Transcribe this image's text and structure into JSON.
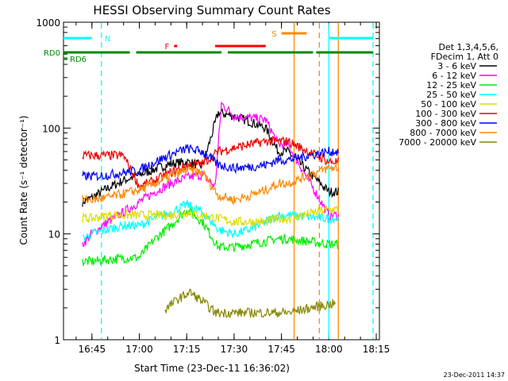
{
  "chart_data": {
    "type": "line",
    "title": "HESSI Observing Summary Count Rates",
    "xlabel": "Start Time (23-Dec-11 16:36:02)",
    "ylabel": "Count Rate (s⁻¹ detector⁻¹)",
    "y_scale": "log",
    "ylim": [
      1,
      1000
    ],
    "xlim_minutes_after_16_36": [
      0,
      100
    ],
    "x_ticks": [
      "16:45",
      "17:00",
      "17:15",
      "17:30",
      "17:45",
      "18:00",
      "18:15"
    ],
    "y_ticks": [
      "1",
      "10",
      "100",
      "1000"
    ],
    "timestamp": "23-Dec-2011 14:37",
    "legend": {
      "placement": "right",
      "header": [
        "Det 1,3,4,5,6,",
        "FDecim 1, Att 0"
      ]
    },
    "series": [
      {
        "name": "3 - 6 keV",
        "color": "#000000",
        "x": [
          "16:42",
          "16:45",
          "16:50",
          "16:55",
          "17:00",
          "17:05",
          "17:10",
          "17:15",
          "17:20",
          "17:25",
          "17:30",
          "17:35",
          "17:40",
          "17:44",
          "17:47",
          "18:00",
          "18:03"
        ],
        "values": [
          20,
          22,
          27,
          32,
          36,
          41,
          46,
          48,
          44,
          140,
          130,
          115,
          100,
          60,
          60,
          25,
          25
        ]
      },
      {
        "name": "6 - 12 keV",
        "color": "#ff00ff",
        "x": [
          "16:42",
          "16:45",
          "16:50",
          "16:55",
          "17:00",
          "17:05",
          "17:10",
          "17:15",
          "17:20",
          "17:24",
          "17:26",
          "17:30",
          "17:35",
          "17:40",
          "17:44",
          "17:47",
          "18:00",
          "18:03"
        ],
        "values": [
          8,
          10,
          13,
          16,
          20,
          25,
          30,
          34,
          36,
          28,
          170,
          130,
          125,
          120,
          70,
          70,
          15,
          15
        ]
      },
      {
        "name": "12 - 25 keV",
        "color": "#00ee00",
        "x": [
          "16:42",
          "16:45",
          "16:50",
          "16:55",
          "17:00",
          "17:05",
          "17:10",
          "17:15",
          "17:20",
          "17:25",
          "17:30",
          "17:35",
          "17:40",
          "17:44",
          "17:47",
          "18:00",
          "18:03"
        ],
        "values": [
          5.5,
          5.5,
          5.7,
          5.9,
          6,
          9,
          12,
          17,
          13,
          7.5,
          7.5,
          8,
          8.5,
          9,
          9,
          8,
          8
        ]
      },
      {
        "name": "25 - 50 keV",
        "color": "#00ffff",
        "x": [
          "16:42",
          "16:45",
          "16:50",
          "16:55",
          "17:00",
          "17:05",
          "17:10",
          "17:15",
          "17:20",
          "17:25",
          "17:30",
          "17:35",
          "17:40",
          "17:44",
          "17:47",
          "18:00",
          "18:03"
        ],
        "values": [
          9,
          10,
          11,
          12,
          12,
          14,
          16,
          19,
          16,
          11,
          10,
          11,
          13,
          15,
          15,
          14,
          14
        ]
      },
      {
        "name": "50 - 100 keV",
        "color": "#dddd00",
        "x": [
          "16:42",
          "16:45",
          "16:50",
          "16:55",
          "17:00",
          "17:05",
          "17:10",
          "17:15",
          "17:20",
          "17:25",
          "17:30",
          "17:35",
          "17:40",
          "17:44",
          "17:47",
          "18:00",
          "18:03"
        ],
        "values": [
          14,
          14,
          15,
          15,
          15,
          15,
          15,
          16,
          15,
          14,
          13,
          13,
          13,
          14,
          14,
          17,
          17
        ]
      },
      {
        "name": "100 - 300 keV",
        "color": "#ee0000",
        "x": [
          "16:42",
          "16:45",
          "16:50",
          "16:55",
          "17:00",
          "17:05",
          "17:10",
          "17:15",
          "17:20",
          "17:25",
          "17:30",
          "17:35",
          "17:40",
          "17:44",
          "17:47",
          "18:00",
          "18:03"
        ],
        "values": [
          55,
          55,
          55,
          55,
          28,
          32,
          38,
          44,
          46,
          60,
          65,
          70,
          75,
          75,
          75,
          48,
          48
        ]
      },
      {
        "name": "300 - 800 keV",
        "color": "#0000ee",
        "x": [
          "16:42",
          "16:45",
          "16:50",
          "16:55",
          "17:00",
          "17:05",
          "17:10",
          "17:15",
          "17:20",
          "17:25",
          "17:30",
          "17:35",
          "17:40",
          "17:44",
          "17:47",
          "18:00",
          "18:03"
        ],
        "values": [
          35,
          35,
          36,
          38,
          40,
          48,
          56,
          64,
          60,
          45,
          42,
          43,
          45,
          50,
          50,
          60,
          60
        ]
      },
      {
        "name": "800 - 7000 keV",
        "color": "#ff8800",
        "x": [
          "16:42",
          "16:45",
          "16:50",
          "16:55",
          "17:00",
          "17:05",
          "17:10",
          "17:15",
          "17:20",
          "17:25",
          "17:30",
          "17:35",
          "17:40",
          "17:44",
          "17:47",
          "18:00",
          "18:03"
        ],
        "values": [
          21,
          21,
          22,
          24,
          26,
          30,
          35,
          40,
          38,
          23,
          21,
          23,
          26,
          30,
          30,
          42,
          42
        ]
      },
      {
        "name": "7000 - 20000 keV",
        "color": "#888800",
        "x": [
          "17:08",
          "17:12",
          "17:16",
          "17:20",
          "17:24",
          "17:47",
          "17:58",
          "18:02"
        ],
        "values": [
          1.9,
          2.4,
          2.8,
          2.3,
          1.8,
          1.8,
          2.1,
          2.2
        ]
      }
    ],
    "state_bars": [
      {
        "label": "N",
        "color": "#00ffff",
        "segments": [
          [
            "16:36",
            "16:45"
          ],
          [
            "18:00",
            "18:14"
          ]
        ]
      },
      {
        "label": "F",
        "color": "#ff0000",
        "segments": [
          [
            "17:11",
            "17:12"
          ],
          [
            "17:24",
            "17:40"
          ]
        ]
      },
      {
        "label": "S",
        "color": "#ff8800",
        "segments": [
          [
            "17:45",
            "17:53"
          ]
        ]
      },
      {
        "label": "RD0",
        "color": "#008800",
        "segments": [
          [
            "16:36",
            "16:57"
          ],
          [
            "16:59",
            "17:26"
          ],
          [
            "17:28",
            "17:55"
          ],
          [
            "17:56",
            "18:14"
          ]
        ]
      },
      {
        "label": "RD6",
        "color": "#008800",
        "segments": []
      }
    ],
    "vlines": [
      {
        "time": "16:48",
        "color": "#00ffff",
        "style": "dashed"
      },
      {
        "time": "17:49",
        "color": "#ff8800",
        "style": "solid"
      },
      {
        "time": "17:57",
        "color": "#ff8800",
        "style": "dashed"
      },
      {
        "time": "18:00",
        "color": "#00ffff",
        "style": "solid"
      },
      {
        "time": "18:03",
        "color": "#ff8800",
        "style": "solid"
      },
      {
        "time": "18:14",
        "color": "#00ffff",
        "style": "dashed"
      }
    ]
  }
}
